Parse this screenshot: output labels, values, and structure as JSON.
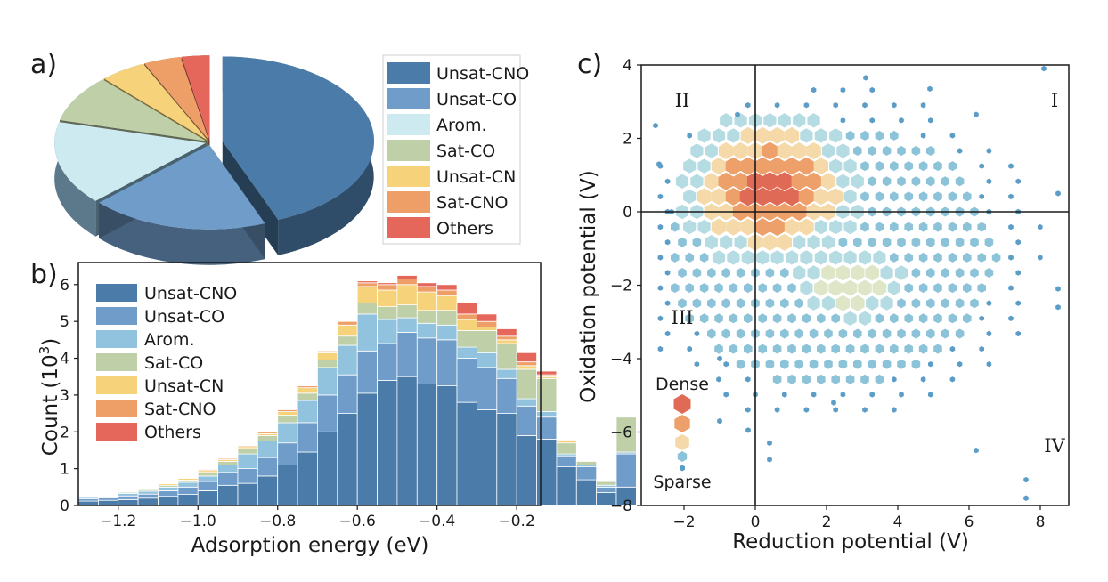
{
  "panels": {
    "a": "a)",
    "b": "b)",
    "c": "c)"
  },
  "colors": {
    "Unsat-CNO": "#4b7ba8",
    "Unsat-CO": "#6f9cc9",
    "Arom.": "#92c3de",
    "Sat-CO": "#bfcfa8",
    "Unsat-CN": "#f6d37a",
    "Sat-CNO": "#ee9f68",
    "Others": "#e5675b"
  },
  "chart_data": [
    {
      "type": "pie",
      "title": "",
      "labels": [
        "Unsat-CNO",
        "Unsat-CO",
        "Arom.",
        "Sat-CO",
        "Unsat-CN",
        "Sat-CNO",
        "Others"
      ],
      "values": [
        44,
        19,
        16,
        9,
        5,
        4,
        3
      ],
      "legend": [
        "Unsat-CNO",
        "Unsat-CO",
        "Arom.",
        "Sat-CO",
        "Unsat-CN",
        "Sat-CNO",
        "Others"
      ]
    },
    {
      "type": "bar",
      "stacked": true,
      "xlabel": "Adsorption energy (eV)",
      "ylabel": "Count (10",
      "ylabel_sup": "3",
      "ylabel_end": ")",
      "xlim": [
        -1.3,
        -0.14
      ],
      "ylim": [
        0,
        6.6
      ],
      "bin_width": 0.05,
      "x_start": -1.3,
      "xticks": [
        -1.2,
        -1.0,
        -0.8,
        -0.6,
        -0.4,
        -0.2
      ],
      "xtick_labels": [
        "−1.2",
        "−1.0",
        "−0.8",
        "−0.6",
        "−0.4",
        "−0.2"
      ],
      "yticks": [
        0,
        1,
        2,
        3,
        4,
        5,
        6
      ],
      "ytick_labels": [
        "0",
        "1",
        "2",
        "3",
        "4",
        "5",
        "6"
      ],
      "series": [
        {
          "name": "Unsat-CNO",
          "values": [
            0.12,
            0.14,
            0.16,
            0.2,
            0.25,
            0.3,
            0.4,
            0.55,
            0.6,
            0.8,
            1.1,
            1.45,
            2.0,
            2.5,
            3.05,
            3.4,
            3.5,
            3.3,
            3.25,
            2.8,
            2.6,
            2.5,
            1.9,
            1.8,
            1.05,
            0.7,
            0.35,
            0.5
          ]
        },
        {
          "name": "Unsat-CO",
          "values": [
            0.06,
            0.07,
            0.1,
            0.11,
            0.15,
            0.2,
            0.25,
            0.35,
            0.4,
            0.5,
            0.6,
            0.8,
            1.0,
            1.05,
            1.15,
            1.0,
            1.2,
            1.25,
            1.25,
            1.2,
            1.15,
            0.95,
            0.8,
            0.6,
            0.3,
            0.35,
            0.15,
            0.9
          ]
        },
        {
          "name": "Arom.",
          "values": [
            0.04,
            0.04,
            0.07,
            0.08,
            0.1,
            0.13,
            0.15,
            0.2,
            0.4,
            0.45,
            0.55,
            0.6,
            0.75,
            0.8,
            1.0,
            0.65,
            0.4,
            0.4,
            0.4,
            0.3,
            0.4,
            0.25,
            0.2,
            0.15,
            0.05,
            0.05,
            0.05,
            0.05
          ]
        },
        {
          "name": "Sat-CO",
          "values": [
            0.02,
            0.02,
            0.03,
            0.04,
            0.05,
            0.06,
            0.1,
            0.1,
            0.15,
            0.15,
            0.2,
            0.2,
            0.2,
            0.25,
            0.3,
            0.35,
            0.35,
            0.35,
            0.4,
            0.45,
            0.6,
            0.7,
            0.8,
            0.9,
            0.3,
            0.1,
            0.1,
            0.95
          ]
        },
        {
          "name": "Unsat-CN",
          "values": [
            0.01,
            0.01,
            0.02,
            0.02,
            0.04,
            0.05,
            0.05,
            0.05,
            0.05,
            0.05,
            0.1,
            0.15,
            0.2,
            0.3,
            0.45,
            0.45,
            0.55,
            0.5,
            0.4,
            0.3,
            0.1,
            0.1,
            0.1,
            0.05,
            0.05,
            0.02,
            0.02,
            0.02
          ]
        },
        {
          "name": "Sat-CNO",
          "values": [
            0.01,
            0.01,
            0.01,
            0.01,
            0.02,
            0.02,
            0.03,
            0.03,
            0.03,
            0.04,
            0.05,
            0.05,
            0.05,
            0.1,
            0.1,
            0.15,
            0.15,
            0.15,
            0.15,
            0.15,
            0.15,
            0.1,
            0.1,
            0.05,
            0.03,
            0.02,
            0.02,
            0.02
          ]
        },
        {
          "name": "Others",
          "values": [
            0,
            0,
            0,
            0,
            0,
            0,
            0,
            0,
            0,
            0,
            0,
            0,
            0,
            0,
            0.05,
            0.05,
            0.1,
            0.1,
            0.15,
            0.3,
            0.2,
            0.2,
            0.25,
            0.1,
            0.02,
            0.01,
            0.01,
            0.01
          ]
        }
      ],
      "legend": [
        "Unsat-CNO",
        "Unsat-CO",
        "Arom.",
        "Sat-CO",
        "Unsat-CN",
        "Sat-CNO",
        "Others"
      ]
    },
    {
      "type": "scatter",
      "subtype": "hexbin",
      "xlabel": "Reduction potential (V)",
      "ylabel": "Oxidation potential (V)",
      "xlim": [
        -3.2,
        8.8
      ],
      "ylim": [
        -8,
        4
      ],
      "xticks": [
        -2,
        0,
        2,
        4,
        6,
        8
      ],
      "xtick_labels": [
        "−2",
        "0",
        "2",
        "4",
        "6",
        "8"
      ],
      "yticks": [
        -8,
        -6,
        -4,
        -2,
        0,
        2,
        4
      ],
      "ytick_labels": [
        "−8",
        "−6",
        "−4",
        "−2",
        "0",
        "2",
        "4"
      ],
      "quadrants": {
        "I": "I",
        "II": "II",
        "III": "III",
        "IV": "IV"
      },
      "density_center": [
        0.4,
        0.6
      ],
      "secondary_center": [
        2.7,
        -1.9
      ],
      "density_legend": {
        "dense": "Dense",
        "sparse": "Sparse"
      },
      "density_colors": [
        "#df6a55",
        "#eea06a",
        "#f5d9a9",
        "#dfe6c8",
        "#b6dce3",
        "#8cc3d8",
        "#5b9dc7"
      ],
      "outliers": [
        {
          "x": -2.8,
          "y": 2.35
        },
        {
          "x": -2.7,
          "y": 1.3
        },
        {
          "x": -2.35,
          "y": 0.0
        },
        {
          "x": 8.1,
          "y": 3.9
        },
        {
          "x": 8.5,
          "y": 0.5
        },
        {
          "x": 8.5,
          "y": -2.1
        },
        {
          "x": 8.5,
          "y": -2.6
        },
        {
          "x": 7.6,
          "y": -7.3
        },
        {
          "x": 7.6,
          "y": -7.8
        },
        {
          "x": 6.2,
          "y": -6.5
        },
        {
          "x": 0.4,
          "y": -6.75
        },
        {
          "x": 0.4,
          "y": -6.3
        },
        {
          "x": -0.2,
          "y": -5.95
        },
        {
          "x": -1.0,
          "y": -5.7
        },
        {
          "x": 2.2,
          "y": -5.2
        },
        {
          "x": 3.1,
          "y": 3.65
        },
        {
          "x": 4.9,
          "y": 3.35
        },
        {
          "x": 6.2,
          "y": 2.65
        },
        {
          "x": -0.5,
          "y": 2.65
        },
        {
          "x": -1.0,
          "y": -4.0
        }
      ]
    }
  ]
}
